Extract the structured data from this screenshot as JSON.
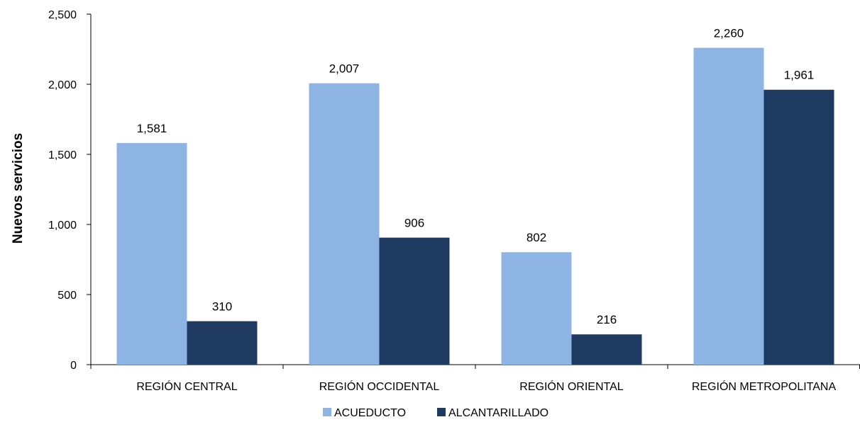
{
  "chart_data": {
    "type": "bar",
    "title": "",
    "xlabel": "",
    "ylabel": "Nuevos servicios",
    "ylim": [
      0,
      2500
    ],
    "yticks": [
      0,
      500,
      1000,
      1500,
      2000,
      2500
    ],
    "ytick_labels": [
      "0",
      "500",
      "1,000",
      "1,500",
      "2,000",
      "2,500"
    ],
    "grid": false,
    "legend_position": "bottom",
    "categories": [
      "REGIÓN CENTRAL",
      "REGIÓN OCCIDENTAL",
      "REGIÓN ORIENTAL",
      "REGIÓN METROPOLITANA"
    ],
    "series": [
      {
        "name": "ACUEDUCTO",
        "color": "#8eb4e3",
        "values": [
          1581,
          2007,
          802,
          2260
        ],
        "labels": [
          "1,581",
          "2,007",
          "802",
          "2,260"
        ]
      },
      {
        "name": "ALCANTARILLADO",
        "color": "#1f3a60",
        "values": [
          310,
          906,
          216,
          1961
        ],
        "labels": [
          "310",
          "906",
          "216",
          "1,961"
        ]
      }
    ]
  }
}
